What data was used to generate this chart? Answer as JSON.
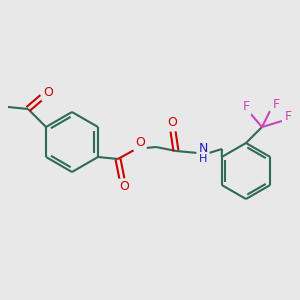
{
  "bg_color": "#e8e8e8",
  "bond_color": "#2d6b52",
  "oxygen_color": "#cc0000",
  "nitrogen_color": "#1a1acc",
  "fluorine_color": "#cc44bb",
  "lw": 1.5,
  "figsize": [
    3.0,
    3.0
  ],
  "dpi": 100,
  "xlim": [
    0,
    300
  ],
  "ylim": [
    0,
    300
  ]
}
